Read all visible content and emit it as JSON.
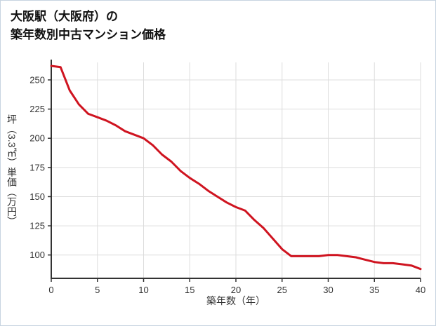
{
  "title": {
    "line1": "大阪駅（大阪府）の",
    "line2": "築年数別中古マンション価格"
  },
  "chart_data": {
    "type": "line",
    "title": "大阪駅（大阪府）の築年数別中古マンション価格",
    "xlabel": "築年数（年）",
    "ylabel": "坪（3.3㎡）単価（万円）",
    "x": [
      0,
      1,
      2,
      3,
      4,
      5,
      6,
      7,
      8,
      9,
      10,
      11,
      12,
      13,
      14,
      15,
      16,
      17,
      18,
      19,
      20,
      21,
      22,
      23,
      24,
      25,
      26,
      27,
      28,
      29,
      30,
      31,
      32,
      33,
      34,
      35,
      36,
      37,
      38,
      39,
      40
    ],
    "values": [
      262,
      261,
      241,
      229,
      221,
      218,
      215,
      211,
      206,
      203,
      200,
      194,
      186,
      180,
      172,
      166,
      161,
      155,
      150,
      145,
      141,
      138,
      130,
      123,
      114,
      105,
      99,
      99,
      99,
      99,
      100,
      100,
      99,
      98,
      96,
      94,
      93,
      93,
      92,
      91,
      88
    ],
    "xlim": [
      0,
      40
    ],
    "ylim": [
      80,
      265
    ],
    "xticks": [
      0,
      5,
      10,
      15,
      20,
      25,
      30,
      35,
      40
    ],
    "yticks": [
      100,
      125,
      150,
      175,
      200,
      225,
      250
    ],
    "grid": true,
    "legend": "none",
    "line_color": "#cf1420",
    "grid_color": "#dddddd",
    "axis_color": "#333333"
  }
}
